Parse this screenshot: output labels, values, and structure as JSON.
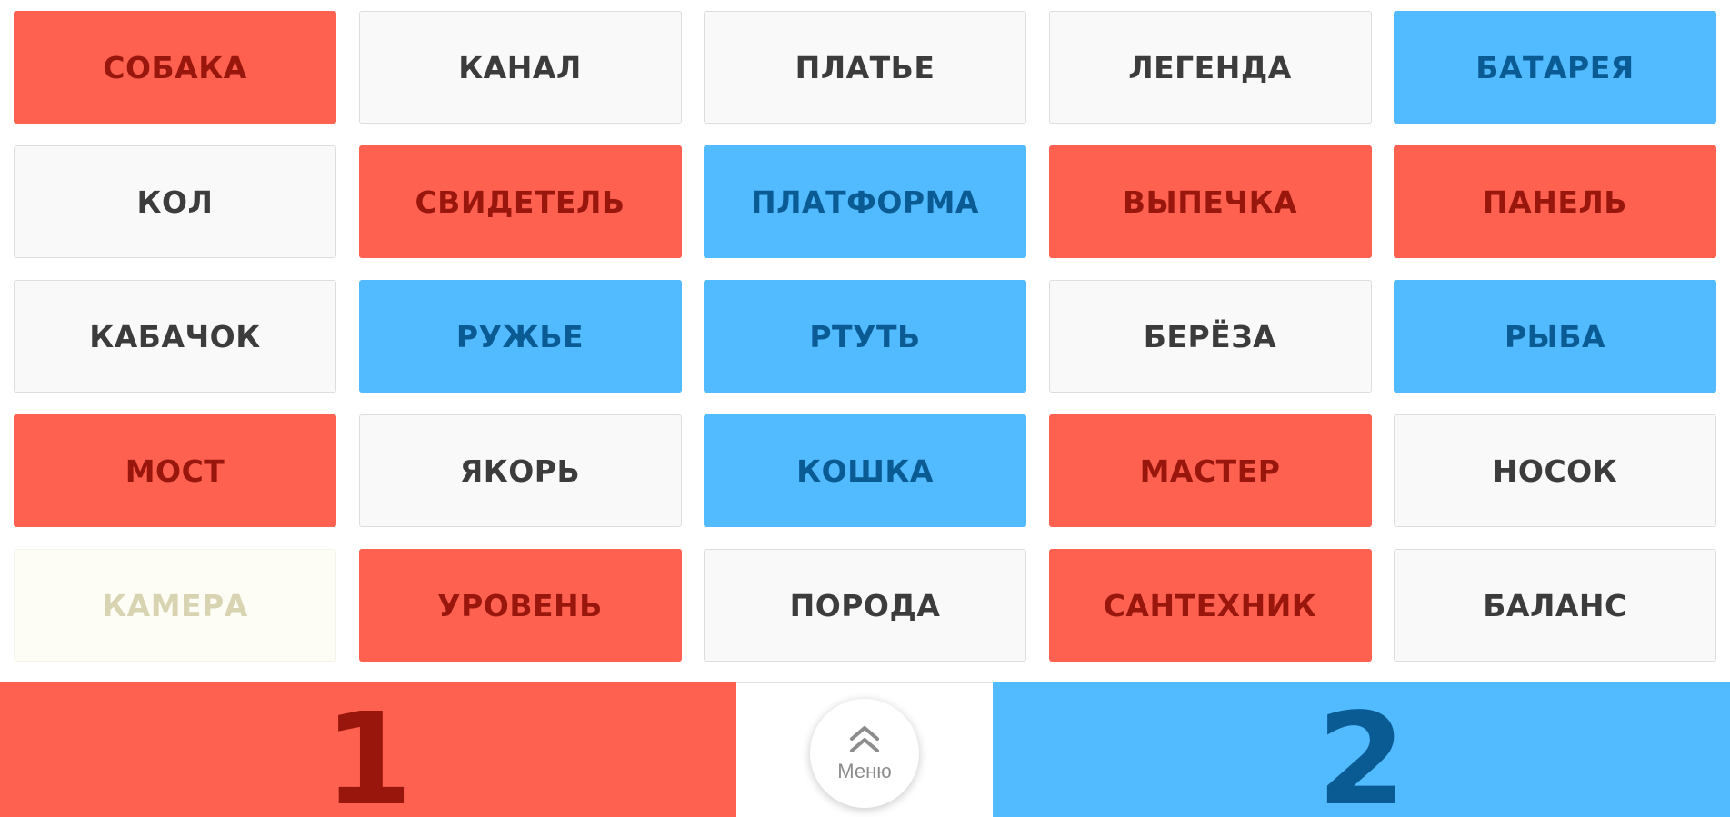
{
  "board": {
    "cards": [
      {
        "word": "СОБАКА",
        "team": "red"
      },
      {
        "word": "КАНАЛ",
        "team": "neutral"
      },
      {
        "word": "ПЛАТЬЕ",
        "team": "neutral"
      },
      {
        "word": "ЛЕГЕНДА",
        "team": "neutral"
      },
      {
        "word": "БАТАРЕЯ",
        "team": "blue"
      },
      {
        "word": "КОЛ",
        "team": "neutral"
      },
      {
        "word": "СВИДЕТЕЛЬ",
        "team": "red"
      },
      {
        "word": "ПЛАТФОРМА",
        "team": "blue"
      },
      {
        "word": "ВЫПЕЧКА",
        "team": "red"
      },
      {
        "word": "ПАНЕЛЬ",
        "team": "red"
      },
      {
        "word": "КАБАЧОК",
        "team": "neutral"
      },
      {
        "word": "РУЖЬЕ",
        "team": "blue"
      },
      {
        "word": "РТУТЬ",
        "team": "blue"
      },
      {
        "word": "БЕРЁЗА",
        "team": "neutral"
      },
      {
        "word": "РЫБА",
        "team": "blue"
      },
      {
        "word": "МОСТ",
        "team": "red"
      },
      {
        "word": "ЯКОРЬ",
        "team": "neutral"
      },
      {
        "word": "КОШКА",
        "team": "blue"
      },
      {
        "word": "МАСТЕР",
        "team": "red"
      },
      {
        "word": "НОСОК",
        "team": "neutral"
      },
      {
        "word": "КАМЕРА",
        "team": "faded"
      },
      {
        "word": "УРОВЕНЬ",
        "team": "red"
      },
      {
        "word": "ПОРОДА",
        "team": "neutral"
      },
      {
        "word": "САНТЕХНИК",
        "team": "red"
      },
      {
        "word": "БАЛАНС",
        "team": "neutral"
      }
    ]
  },
  "footer": {
    "team_red_score": "1",
    "team_blue_score": "2",
    "menu_label": "Меню",
    "menu_icon": "double-chevron-up-icon"
  },
  "colors": {
    "red": "#ff6150",
    "red_text": "#99160c",
    "blue": "#52baff",
    "blue_text": "#0a5a94",
    "neutral": "#f9f9f9",
    "neutral_text": "#3c3c3c"
  }
}
